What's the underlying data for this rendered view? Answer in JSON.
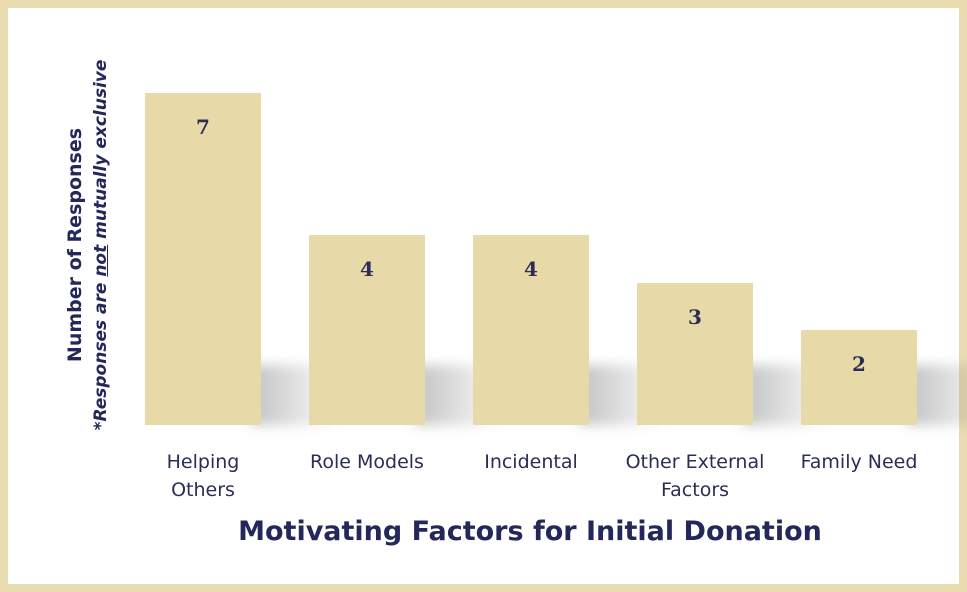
{
  "chart_data": {
    "type": "bar",
    "title": "Motivating Factors for Initial Donation",
    "ylabel": "Number of Responses",
    "ylabel_note": [
      "*Responses are ",
      "not",
      " mutually exclusive"
    ],
    "categories": [
      "Helping\nOthers",
      "Role Models",
      "Incidental",
      "Other External\nFactors",
      "Family Need"
    ],
    "values": [
      7,
      4,
      4,
      3,
      2
    ],
    "color": "#e8d9a8"
  }
}
